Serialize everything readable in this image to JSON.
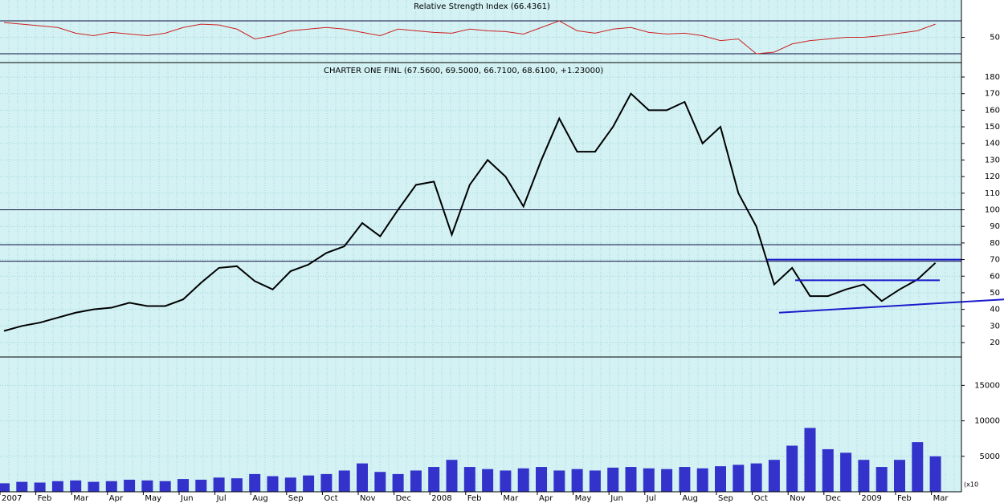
{
  "chart_data": [
    {
      "type": "line",
      "title": "Relative Strength Index (66.4361)",
      "color": "#cc2222",
      "values": [
        68,
        66,
        64,
        62,
        55,
        52,
        56,
        54,
        52,
        55,
        62,
        66,
        65,
        60,
        48,
        52,
        58,
        60,
        62,
        60,
        56,
        52,
        60,
        58,
        56,
        55,
        60,
        58,
        57,
        54,
        62,
        70,
        58,
        55,
        60,
        62,
        56,
        54,
        55,
        52,
        46,
        48,
        30,
        32,
        42,
        46,
        48,
        50,
        50,
        52,
        55,
        58,
        66
      ],
      "ylim": [
        19.3,
        95.4
      ],
      "yticks": [
        50
      ],
      "levels": [
        30,
        70
      ],
      "grid": true
    },
    {
      "type": "line",
      "title": "CHARTER ONE FINL (67.5600, 69.5000, 66.7100, 68.6100, +1.23000)",
      "color": "#000000",
      "values": [
        27,
        30,
        32,
        35,
        38,
        40,
        41,
        44,
        42,
        42,
        46,
        56,
        65,
        66,
        57,
        52,
        63,
        67,
        74,
        78,
        92,
        84,
        100,
        115,
        117,
        85,
        115,
        130,
        120,
        102,
        130,
        155,
        135,
        135,
        150,
        170,
        160,
        160,
        165,
        140,
        150,
        110,
        90,
        55,
        65,
        48,
        48,
        52,
        55,
        45,
        52,
        58,
        68
      ],
      "ylim": [
        11.3,
        188.7
      ],
      "yticks": [
        20,
        30,
        40,
        50,
        60,
        70,
        80,
        90,
        100,
        110,
        120,
        130,
        140,
        150,
        160,
        170,
        180
      ],
      "levels": [
        100,
        79,
        69
      ],
      "trend_lines": [
        {
          "values": [
            70,
            70
          ]
        },
        {
          "values": [
            57.5,
            57.5
          ]
        },
        {
          "values": [
            38,
            46
          ]
        }
      ],
      "trend_color": "#1a1acc",
      "grid": true
    },
    {
      "type": "bar",
      "color": "#3333cc",
      "y_unit_label": "(x10",
      "categories": [
        "2007",
        null,
        "Feb",
        null,
        "Mar",
        null,
        "Apr",
        null,
        "May",
        null,
        "Jun",
        null,
        "Jul",
        null,
        "Aug",
        null,
        "Sep",
        null,
        "Oct",
        null,
        "Nov",
        null,
        "Dec",
        null,
        "2008",
        null,
        "Feb",
        null,
        "Mar",
        null,
        "Apr",
        null,
        "May",
        null,
        "Jun",
        null,
        "Jul",
        null,
        "Aug",
        null,
        "Sep",
        null,
        "Oct",
        null,
        "Nov",
        null,
        "Dec",
        null,
        "2009",
        null,
        "Feb",
        null,
        "Mar"
      ],
      "values": [
        1200,
        1400,
        1300,
        1500,
        1600,
        1400,
        1500,
        1700,
        1600,
        1500,
        1800,
        1700,
        2000,
        1900,
        2500,
        2200,
        2000,
        2300,
        2500,
        3000,
        4000,
        2800,
        2500,
        3000,
        3500,
        4500,
        3500,
        3200,
        3000,
        3300,
        3500,
        3000,
        3200,
        3000,
        3400,
        3500,
        3300,
        3200,
        3500,
        3300,
        3600,
        3800,
        4000,
        4500,
        6500,
        9000,
        6000,
        5500,
        4500,
        3500,
        4500,
        7000,
        5000
      ],
      "ylim": [
        0,
        19000
      ],
      "yticks": [
        5000,
        10000,
        15000
      ],
      "grid": true
    }
  ]
}
